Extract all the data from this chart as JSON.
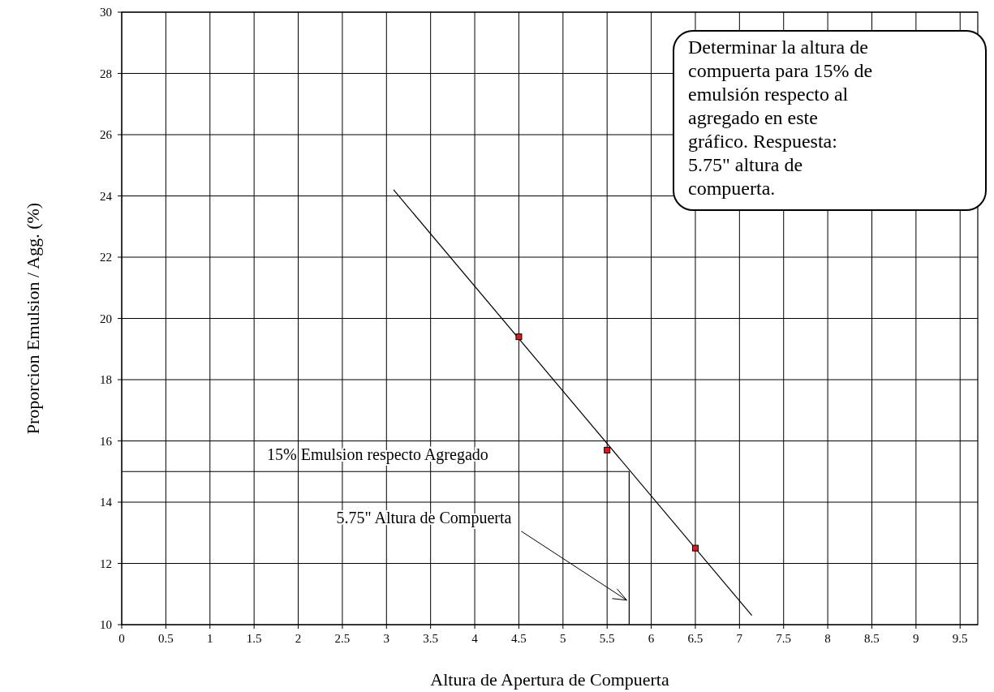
{
  "chart_data": {
    "type": "scatter",
    "xlabel": "Altura de Apertura de Compuerta",
    "ylabel": "Proporcion Emulsion / Agg. (%)",
    "xlim": [
      0,
      9.7
    ],
    "xticks": [
      0,
      0.5,
      1,
      1.5,
      2,
      2.5,
      3,
      3.5,
      4,
      4.5,
      5,
      5.5,
      6,
      6.5,
      7,
      7.5,
      8,
      8.5,
      9,
      9.5
    ],
    "ylim": [
      10,
      30
    ],
    "yticks": [
      10,
      12,
      14,
      16,
      18,
      20,
      22,
      24,
      26,
      28,
      30
    ],
    "grid": true,
    "series": [
      {
        "type": "line",
        "color": "#000000",
        "x": [
          3.08,
          7.14
        ],
        "values": [
          24.2,
          10.3
        ],
        "marker": "none"
      },
      {
        "type": "line",
        "color": "#000000",
        "x": [
          0,
          5.75,
          5.75
        ],
        "values": [
          15,
          15,
          10
        ],
        "marker": "none"
      },
      {
        "color": "#e8151b",
        "x": [
          4.5,
          5.5,
          6.5
        ],
        "values": [
          19.4,
          15.7,
          12.5
        ],
        "marker": "square"
      }
    ],
    "annotations": [
      {
        "text": "15% Emulsion respecto Agregado",
        "x": 2.9,
        "y": 15
      },
      {
        "text": "5.75\" Altura de Compuerta",
        "x": 5.75,
        "y": 10.8
      },
      "Determinar la altura de compuerta para 15% de emulsión respecto al agregado en este gráfico. Respuesta: 5.75\" altura de compuerta."
    ]
  }
}
